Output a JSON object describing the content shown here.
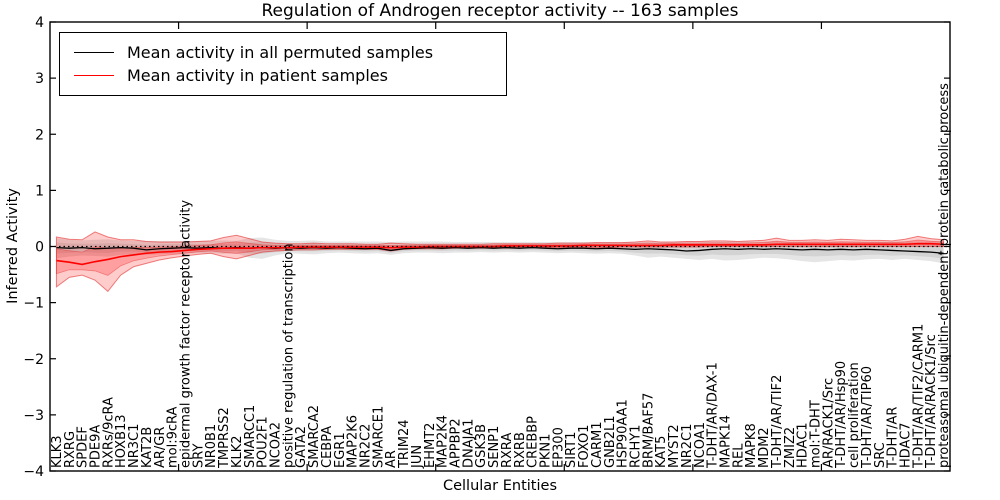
{
  "chart_data": {
    "type": "line",
    "title": "Regulation of Androgen receptor activity -- 163 samples",
    "xlabel": "Cellular Entities",
    "ylabel": "Inferred Activity",
    "ylim": [
      -4,
      4
    ],
    "ytick_labels": [
      "4",
      "3",
      "2",
      "1",
      "0",
      "−1",
      "−2",
      "−3",
      "−4"
    ],
    "grid": false,
    "legend_position": "upper left",
    "reference_line": {
      "y": 0,
      "style": "dotted",
      "color": "#000000"
    },
    "categories": [
      "KLK3",
      "RXRG",
      "SPDEF",
      "PDE9A",
      "RXRs/9cRA",
      "HOXB13",
      "NR3C1",
      "KAT2B",
      "AR/GR",
      "mol:9cRA",
      "epidermal growth factor receptor activity",
      "SRY",
      "NR0B1",
      "TMPRSS2",
      "KLK2",
      "SMARCC1",
      "POU2F1",
      "NCOA2",
      "positive regulation of transcription",
      "GATA2",
      "SMARCA2",
      "CEBPA",
      "EGR1",
      "MAP2K6",
      "NR2C2",
      "SMARCE1",
      "AR",
      "TRIM24",
      "JUN",
      "EHMT2",
      "MAP2K4",
      "APPBP2",
      "DNAJA1",
      "GSK3B",
      "SENP1",
      "RXRA",
      "RXRB",
      "CREBBP",
      "PKN1",
      "EP300",
      "SIRT1",
      "FOXO1",
      "CARM1",
      "GNB2L1",
      "HSP90AA1",
      "RCHY1",
      "BRM/BAF57",
      "KAT5",
      "MYST2",
      "NR2C1",
      "NCOA1",
      "T-DHT/AR/DAX-1",
      "MAPK14",
      "REL",
      "MAPK8",
      "MDM2",
      "T-DHT/AR/TIF2",
      "ZMIZ2",
      "HDAC1",
      "mol:T-DHT",
      "AR/RACK1/Src",
      "T-DHT/AR/Hsp90",
      "cell proliferation",
      "T-DHT/AR/TIP60",
      "SRC",
      "T-DHT/AR",
      "HDAC7",
      "T-DHT/AR/TIF2/CARM1",
      "T-DHT/AR/RACK1/Src",
      "proteasomal ubiquitin-dependent protein catabolic process"
    ],
    "series": [
      {
        "name": "Mean activity in all permuted samples",
        "color": "#000000",
        "band_color": "rgba(0,0,0,0.10)",
        "values": [
          -0.02,
          -0.03,
          -0.02,
          -0.04,
          -0.03,
          -0.02,
          -0.03,
          -0.06,
          -0.04,
          -0.03,
          -0.02,
          -0.03,
          -0.02,
          -0.03,
          -0.02,
          -0.03,
          -0.02,
          -0.03,
          -0.02,
          -0.03,
          -0.02,
          -0.03,
          -0.02,
          -0.03,
          -0.04,
          -0.03,
          -0.07,
          -0.04,
          -0.03,
          -0.02,
          -0.03,
          -0.02,
          -0.03,
          -0.02,
          -0.03,
          -0.02,
          -0.03,
          -0.02,
          -0.03,
          -0.04,
          -0.03,
          -0.03,
          -0.04,
          -0.03,
          -0.04,
          -0.05,
          -0.04,
          -0.05,
          -0.06,
          -0.08,
          -0.07,
          -0.05,
          -0.04,
          -0.05,
          -0.04,
          -0.05,
          -0.04,
          -0.05,
          -0.06,
          -0.05,
          -0.06,
          -0.05,
          -0.06,
          -0.05,
          -0.06,
          -0.07,
          -0.08,
          -0.09,
          -0.1,
          -0.12
        ],
        "band_upper": [
          0.15,
          0.12,
          0.11,
          0.12,
          0.13,
          0.11,
          0.1,
          0.1,
          0.1,
          0.1,
          0.1,
          0.1,
          0.1,
          0.11,
          0.1,
          0.15,
          0.16,
          0.12,
          0.1,
          0.1,
          0.11,
          0.09,
          0.09,
          0.09,
          0.09,
          0.09,
          0.08,
          0.09,
          0.09,
          0.09,
          0.09,
          0.08,
          0.08,
          0.08,
          0.08,
          0.08,
          0.08,
          0.08,
          0.08,
          0.08,
          0.08,
          0.08,
          0.08,
          0.08,
          0.08,
          0.08,
          0.08,
          0.08,
          0.09,
          0.09,
          0.09,
          0.09,
          0.09,
          0.09,
          0.09,
          0.09,
          0.09,
          0.09,
          0.09,
          0.09,
          0.09,
          0.09,
          0.09,
          0.09,
          0.09,
          0.09,
          0.09,
          0.09,
          0.09,
          0.1
        ],
        "band_lower": [
          -0.21,
          -0.18,
          -0.16,
          -0.17,
          -0.18,
          -0.15,
          -0.14,
          -0.15,
          -0.14,
          -0.13,
          -0.13,
          -0.12,
          -0.12,
          -0.13,
          -0.12,
          -0.2,
          -0.22,
          -0.16,
          -0.12,
          -0.13,
          -0.14,
          -0.12,
          -0.11,
          -0.12,
          -0.13,
          -0.12,
          -0.15,
          -0.12,
          -0.11,
          -0.11,
          -0.12,
          -0.11,
          -0.11,
          -0.1,
          -0.11,
          -0.1,
          -0.11,
          -0.1,
          -0.11,
          -0.12,
          -0.11,
          -0.12,
          -0.13,
          -0.12,
          -0.13,
          -0.16,
          -0.2,
          -0.18,
          -0.2,
          -0.22,
          -0.24,
          -0.22,
          -0.25,
          -0.24,
          -0.22,
          -0.2,
          -0.21,
          -0.23,
          -0.26,
          -0.28,
          -0.26,
          -0.24,
          -0.25,
          -0.23,
          -0.22,
          -0.24,
          -0.22,
          -0.24,
          -0.26,
          -0.3
        ]
      },
      {
        "name": "Mean activity in patient samples",
        "color": "#ff0000",
        "band_color": "rgba(255,0,0,0.20)",
        "values": [
          -0.25,
          -0.28,
          -0.32,
          -0.27,
          -0.23,
          -0.18,
          -0.15,
          -0.12,
          -0.1,
          -0.09,
          -0.07,
          -0.05,
          -0.04,
          -0.03,
          -0.03,
          -0.03,
          -0.02,
          -0.02,
          -0.02,
          -0.01,
          -0.01,
          -0.01,
          -0.01,
          -0.01,
          -0.01,
          -0.01,
          -0.02,
          -0.01,
          -0.01,
          0.0,
          0.0,
          0.0,
          0.0,
          0.0,
          0.0,
          0.01,
          0.01,
          0.01,
          0.01,
          0.01,
          0.01,
          0.02,
          0.02,
          0.02,
          0.02,
          0.02,
          0.02,
          0.02,
          0.03,
          0.03,
          0.03,
          0.03,
          0.03,
          0.03,
          0.03,
          0.03,
          0.04,
          0.04,
          0.04,
          0.04,
          0.04,
          0.04,
          0.04,
          0.04,
          0.04,
          0.04,
          0.04,
          0.05,
          0.05,
          0.04
        ],
        "band_upper": [
          0.17,
          0.13,
          0.12,
          0.26,
          0.17,
          0.12,
          0.12,
          0.09,
          0.08,
          0.08,
          0.08,
          0.09,
          0.1,
          0.16,
          0.2,
          0.14,
          0.08,
          0.06,
          0.05,
          0.05,
          0.06,
          0.05,
          0.05,
          0.05,
          0.04,
          0.04,
          0.06,
          0.05,
          0.04,
          0.04,
          0.04,
          0.04,
          0.04,
          0.04,
          0.05,
          0.05,
          0.05,
          0.05,
          0.05,
          0.06,
          0.06,
          0.06,
          0.07,
          0.07,
          0.07,
          0.08,
          0.1,
          0.08,
          0.08,
          0.09,
          0.09,
          0.1,
          0.1,
          0.09,
          0.1,
          0.11,
          0.15,
          0.11,
          0.11,
          0.12,
          0.11,
          0.13,
          0.12,
          0.11,
          0.11,
          0.1,
          0.13,
          0.18,
          0.14,
          0.12
        ],
        "band_lower": [
          -0.72,
          -0.55,
          -0.51,
          -0.6,
          -0.8,
          -0.51,
          -0.36,
          -0.3,
          -0.24,
          -0.2,
          -0.17,
          -0.14,
          -0.12,
          -0.18,
          -0.22,
          -0.16,
          -0.1,
          -0.08,
          -0.07,
          -0.06,
          -0.06,
          -0.05,
          -0.05,
          -0.05,
          -0.05,
          -0.05,
          -0.08,
          -0.05,
          -0.04,
          -0.04,
          -0.04,
          -0.03,
          -0.03,
          -0.03,
          -0.03,
          -0.03,
          -0.03,
          -0.02,
          -0.02,
          -0.02,
          -0.02,
          -0.02,
          -0.02,
          -0.02,
          -0.01,
          -0.01,
          -0.01,
          -0.01,
          -0.01,
          -0.01,
          -0.01,
          0.0,
          0.0,
          0.0,
          0.0,
          0.0,
          0.0,
          0.0,
          0.0,
          0.0,
          0.0,
          0.0,
          0.0,
          0.0,
          0.0,
          0.0,
          0.0,
          0.0,
          0.0,
          0.0
        ]
      }
    ]
  }
}
